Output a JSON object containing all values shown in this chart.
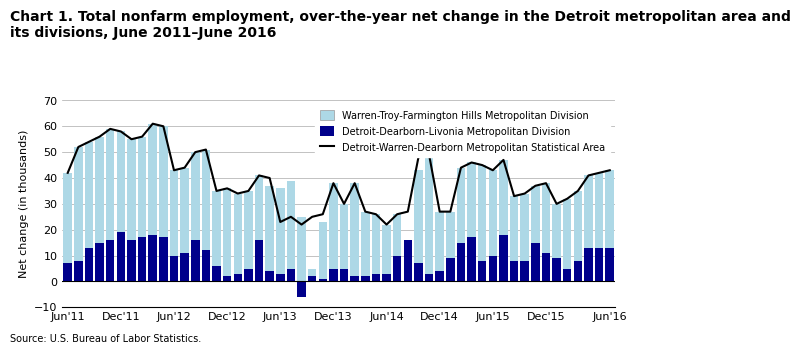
{
  "title": "Chart 1. Total nonfarm employment, over-the-year net change in the Detroit metropolitan area and\nits divisions, June 2011–June 2016",
  "ylabel": "Net change (in thousands)",
  "source": "Source: U.S. Bureau of Labor Statistics.",
  "ylim": [
    -10.0,
    70.0
  ],
  "yticks": [
    -10.0,
    0.0,
    10.0,
    20.0,
    30.0,
    40.0,
    50.0,
    60.0,
    70.0
  ],
  "tick_labels": {
    "0": "Jun'11",
    "5": "Dec'11",
    "10": "Jun'12",
    "15": "Dec'12",
    "20": "Jun'13",
    "25": "Dec'13",
    "30": "Jun'14",
    "35": "Dec'14",
    "40": "Jun'15",
    "45": "Dec'15",
    "51": "Jun'16"
  },
  "light_bars": [
    42,
    52,
    54,
    56,
    59,
    58,
    55,
    56,
    61,
    60,
    43,
    44,
    50,
    51,
    35,
    36,
    34,
    35,
    41,
    37,
    36,
    39,
    25,
    5,
    23,
    38,
    30,
    38,
    27,
    26,
    22,
    26,
    3,
    43,
    49,
    27,
    27,
    44,
    46,
    45,
    43,
    47,
    33,
    34,
    37,
    38,
    30,
    32,
    35,
    41,
    42,
    43
  ],
  "dark_bars": [
    7,
    8,
    13,
    15,
    16,
    19,
    16,
    17,
    18,
    17,
    10,
    11,
    16,
    12,
    6,
    2,
    3,
    5,
    16,
    4,
    3,
    5,
    -6,
    2,
    1,
    5,
    5,
    2,
    2,
    3,
    3,
    10,
    16,
    7,
    3,
    4,
    9,
    15,
    17,
    8,
    10,
    18,
    8,
    8,
    15,
    11,
    9,
    5,
    8,
    13,
    13,
    13
  ],
  "line": [
    42,
    52,
    54,
    56,
    59,
    58,
    55,
    56,
    61,
    60,
    43,
    44,
    50,
    51,
    35,
    36,
    34,
    35,
    41,
    40,
    23,
    25,
    22,
    25,
    26,
    38,
    30,
    38,
    27,
    26,
    22,
    26,
    27,
    48,
    49,
    27,
    27,
    44,
    46,
    45,
    43,
    47,
    33,
    34,
    37,
    38,
    30,
    32,
    35,
    41,
    42,
    43
  ],
  "light_color": "#add8e6",
  "dark_color": "#00008b",
  "line_color": "#000000",
  "legend_light": "Warren-Troy-Farmington Hills Metropolitan Division",
  "legend_dark": "Detroit-Dearborn-Livonia Metropolitan Division",
  "legend_line": "Detroit-Warren-Dearborn Metropolitan Statistical Area",
  "title_fontsize": 10,
  "ylabel_fontsize": 8,
  "tick_fontsize": 8
}
